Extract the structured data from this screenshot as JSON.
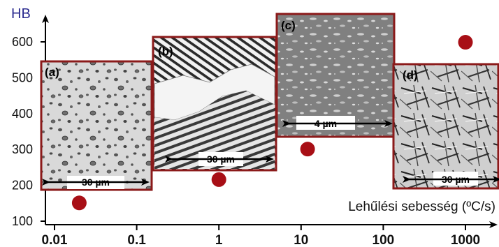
{
  "chart_data": {
    "type": "scatter",
    "y_axis": {
      "title": "HB",
      "ticks": [
        100,
        200,
        300,
        400,
        500,
        600
      ],
      "tick_labels": [
        "100",
        "200",
        "300",
        "400",
        "500",
        "600"
      ],
      "ylim": [
        100,
        700
      ]
    },
    "x_axis": {
      "title": "Lehűlési sebesség (ºC/s)",
      "scale": "log",
      "ticks": [
        0.01,
        0.1,
        1,
        10,
        100,
        1000
      ],
      "tick_labels": [
        "0.01",
        "0.1",
        "1",
        "10",
        "100",
        "1000"
      ],
      "xlim": [
        0.006,
        4000
      ]
    },
    "points": [
      {
        "x": 0.02,
        "y": 151
      },
      {
        "x": 1,
        "y": 216
      },
      {
        "x": 12,
        "y": 301
      },
      {
        "x": 1000,
        "y": 599
      }
    ],
    "marker_color": "#a80f16",
    "panels": [
      {
        "label": "(a)",
        "scale_bar": "30 µm"
      },
      {
        "label": "(b)",
        "scale_bar": "30 µm"
      },
      {
        "label": "(c)",
        "scale_bar": "4 µm"
      },
      {
        "label": "(d)",
        "scale_bar": "30 µm"
      }
    ],
    "grid": false,
    "legend": "none"
  }
}
